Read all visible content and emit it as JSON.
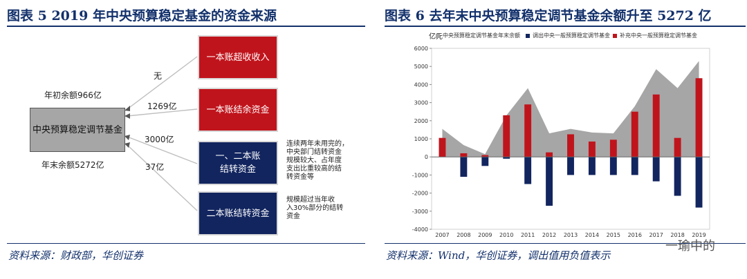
{
  "left": {
    "title": "图表 5 2019 年中央预算稳定基金的资金来源",
    "source": "资料来源：财政部，华创证券",
    "center_box": "中央预算稳定调节基金",
    "label_begin": "年初余额966亿",
    "label_end": "年末余额5272亿",
    "boxes": [
      {
        "text": "一本账超收收入",
        "edge": "无"
      },
      {
        "text": "一本账结余资金",
        "edge": "1269亿"
      },
      {
        "text": "一、二本账\n结转资金",
        "edge": "3000亿"
      },
      {
        "text": "二本账结转资金",
        "edge": "37亿"
      }
    ],
    "note1": "连续两年未用完的，\n中央部门结转资金\n规模较大、占年度\n支出比重较高的结\n转资金等",
    "note2": "规模超过当年收\n入30%部分的结转\n资金",
    "colors": {
      "red": "#c0141c",
      "navy": "#12255f",
      "gray": "#a6a6a6"
    }
  },
  "right": {
    "title": "图表 6 去年末中央预算稳定调节基金余额升至 5272 亿",
    "source": "资料来源：Wind，华创证券，调出值用负值表示",
    "watermark": "一瑜中的"
  },
  "chart_data": {
    "type": "bar",
    "ylabel": "亿元",
    "ylim": [
      -4000,
      6000
    ],
    "yticks": [
      6000,
      5000,
      4000,
      3000,
      2000,
      1000,
      0,
      -1000,
      -2000,
      -3000,
      -4000
    ],
    "categories": [
      "2007",
      "2008",
      "2009",
      "2010",
      "2011",
      "2012",
      "2013",
      "2014",
      "2015",
      "2016",
      "2017",
      "2018",
      "2019"
    ],
    "series": [
      {
        "name": "中央预算稳定调节基金年末余额",
        "type": "area",
        "color": "#a6a6a6",
        "values": [
          1550,
          650,
          150,
          2300,
          3800,
          1300,
          1550,
          1350,
          1300,
          2800,
          4850,
          3800,
          5300
        ]
      },
      {
        "name": "调出中央一般预算稳定调节基金",
        "type": "bar",
        "color": "#12255f",
        "values": [
          0,
          -1100,
          -500,
          -100,
          -1500,
          -2700,
          -1000,
          -1000,
          -1000,
          -1000,
          -1350,
          -2150,
          -2800
        ]
      },
      {
        "name": "补充中央一般预算稳定调节基金",
        "type": "bar",
        "color": "#c0141c",
        "values": [
          1050,
          200,
          100,
          2300,
          2900,
          250,
          1250,
          850,
          950,
          2500,
          3450,
          1050,
          4350
        ]
      }
    ],
    "legend_position": "top"
  }
}
